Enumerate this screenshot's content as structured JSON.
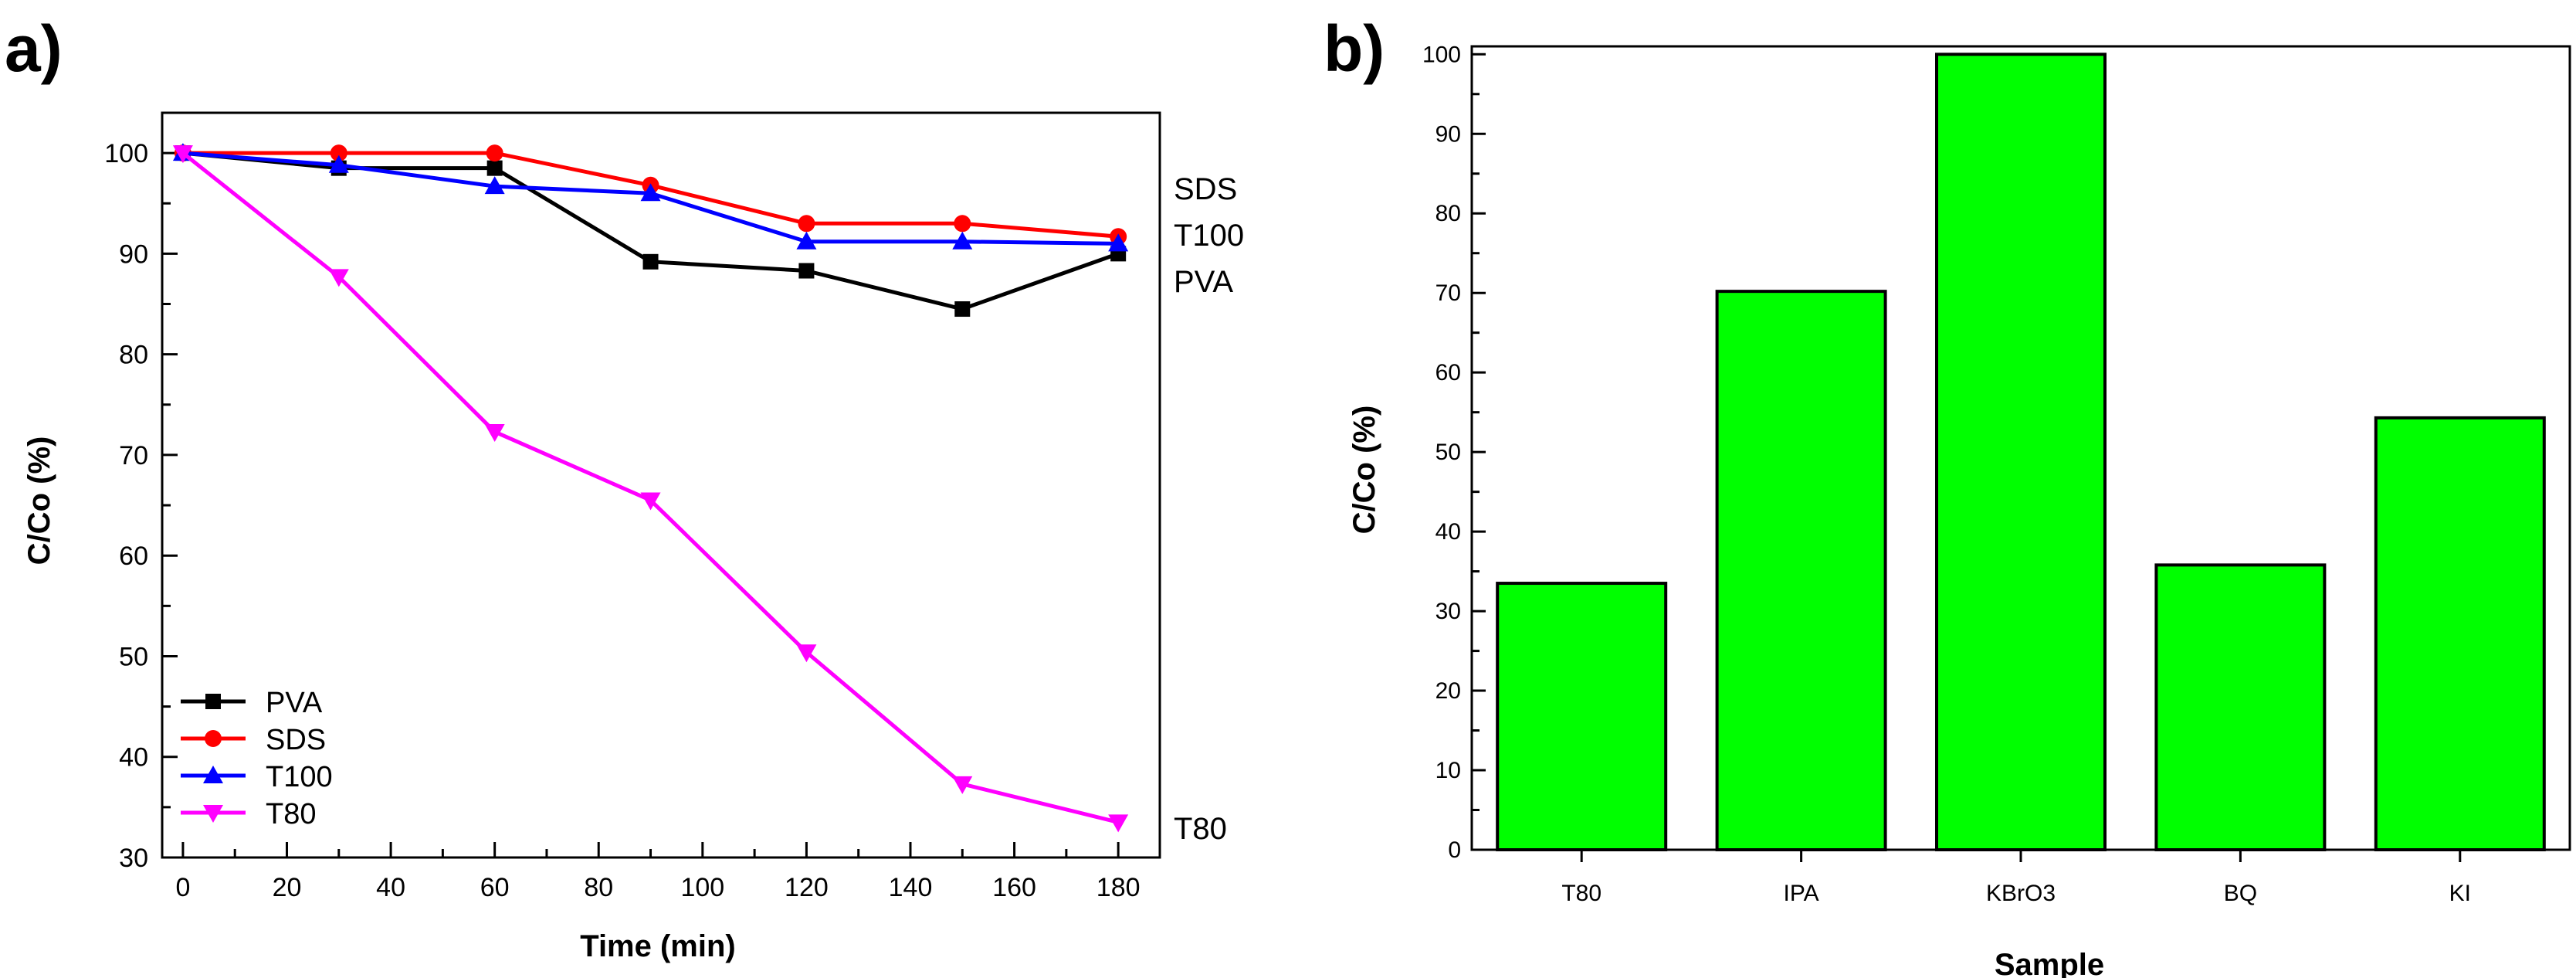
{
  "panels": [
    {
      "letter": "a)",
      "chart_data": {
        "type": "line",
        "title": "",
        "xlabel": "Time (min)",
        "ylabel": "C/Co (%)",
        "xlim": [
          -4,
          188
        ],
        "ylim": [
          30,
          104
        ],
        "xticks": [
          0,
          20,
          40,
          60,
          80,
          100,
          120,
          140,
          160,
          180
        ],
        "yticks": [
          30,
          40,
          50,
          60,
          70,
          80,
          90,
          100
        ],
        "grid": false,
        "legend": "bottom-left",
        "x": [
          0,
          30,
          60,
          90,
          120,
          150,
          180
        ],
        "series": [
          {
            "name": "PVA",
            "color": "#000000",
            "marker": "square",
            "end_label": "PVA",
            "values": [
              100,
              98.5,
              98.5,
              89.2,
              88.3,
              84.5,
              90.0
            ]
          },
          {
            "name": "SDS",
            "color": "#ff0000",
            "marker": "circle",
            "end_label": "SDS",
            "values": [
              100,
              100,
              100,
              96.8,
              93.0,
              93.0,
              91.7
            ]
          },
          {
            "name": "T100",
            "color": "#0000ff",
            "marker": "triangle-up",
            "end_label": "T100",
            "values": [
              100,
              98.8,
              96.7,
              96.0,
              91.2,
              91.2,
              91.0
            ]
          },
          {
            "name": "T80",
            "color": "#ff00ff",
            "marker": "triangle-down",
            "end_label": "T80",
            "values": [
              100,
              87.7,
              72.3,
              65.5,
              50.4,
              37.3,
              33.5
            ]
          }
        ]
      }
    },
    {
      "letter": "b)",
      "chart_data": {
        "type": "bar",
        "title": "",
        "xlabel": "Sample",
        "ylabel": "C/Co (%)",
        "ylim": [
          0,
          101
        ],
        "yticks": [
          0,
          10,
          20,
          30,
          40,
          50,
          60,
          70,
          80,
          90,
          100
        ],
        "grid": false,
        "bar_color": "#00ff00",
        "categories": [
          "T80",
          "IPA",
          "KBrO3",
          "BQ",
          "KI"
        ],
        "values": [
          33.5,
          70.2,
          100.0,
          35.8,
          54.3
        ]
      }
    }
  ]
}
